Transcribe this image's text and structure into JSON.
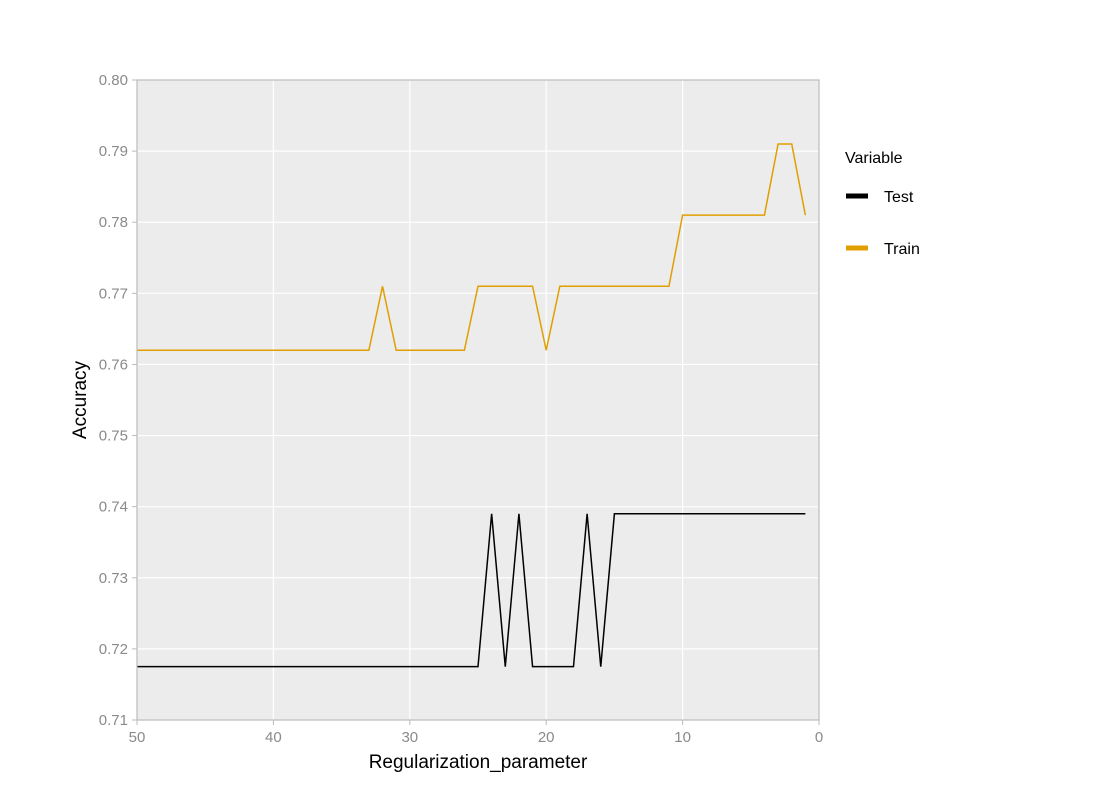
{
  "chart_data": {
    "type": "line",
    "xlabel": "Regularization_parameter",
    "ylabel": "Accuracy",
    "xlim": [
      50,
      0
    ],
    "ylim": [
      0.71,
      0.8
    ],
    "x_reversed": true,
    "x_ticks": [
      50,
      40,
      30,
      20,
      10,
      0
    ],
    "y_ticks": [
      0.71,
      0.72,
      0.73,
      0.74,
      0.75,
      0.76,
      0.77,
      0.78,
      0.79,
      0.8
    ],
    "grid": true,
    "legend": {
      "title": "Variable",
      "position": "right"
    },
    "colors": {
      "panel_background": "#ececec",
      "grid": "#ffffff",
      "border": "#bbbbbb"
    },
    "series": [
      {
        "name": "Test",
        "color": "#000000",
        "points": [
          [
            50,
            0.7175
          ],
          [
            25,
            0.7175
          ],
          [
            24,
            0.739
          ],
          [
            23,
            0.7175
          ],
          [
            22,
            0.739
          ],
          [
            21,
            0.7175
          ],
          [
            18,
            0.7175
          ],
          [
            17,
            0.739
          ],
          [
            16,
            0.7175
          ],
          [
            15,
            0.739
          ],
          [
            1,
            0.739
          ]
        ]
      },
      {
        "name": "Train",
        "color": "#e09f00",
        "points": [
          [
            50,
            0.762
          ],
          [
            33,
            0.762
          ],
          [
            32,
            0.771
          ],
          [
            31,
            0.762
          ],
          [
            26,
            0.762
          ],
          [
            25,
            0.771
          ],
          [
            21,
            0.771
          ],
          [
            20,
            0.762
          ],
          [
            19,
            0.771
          ],
          [
            11,
            0.771
          ],
          [
            10,
            0.781
          ],
          [
            4,
            0.781
          ],
          [
            3,
            0.791
          ],
          [
            2,
            0.791
          ],
          [
            1,
            0.781
          ]
        ]
      }
    ]
  }
}
